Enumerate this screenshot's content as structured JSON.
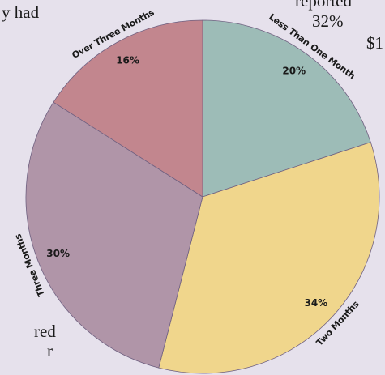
{
  "chart_data": {
    "type": "pie",
    "categories": [
      "Less Than One Month",
      "Two Months",
      "Three Months",
      "Over Three Months"
    ],
    "values": [
      20,
      34,
      30,
      16
    ],
    "value_labels": [
      "20%",
      "34%",
      "30%",
      "16%"
    ],
    "colors": [
      "#9dbcb7",
      "#f0d68c",
      "#b095a8",
      "#c2868e"
    ],
    "start_angle": 0,
    "direction": "clockwise"
  },
  "text_fragments": [
    "y had",
    "reported",
    "32%",
    "$1",
    "red",
    "r"
  ]
}
